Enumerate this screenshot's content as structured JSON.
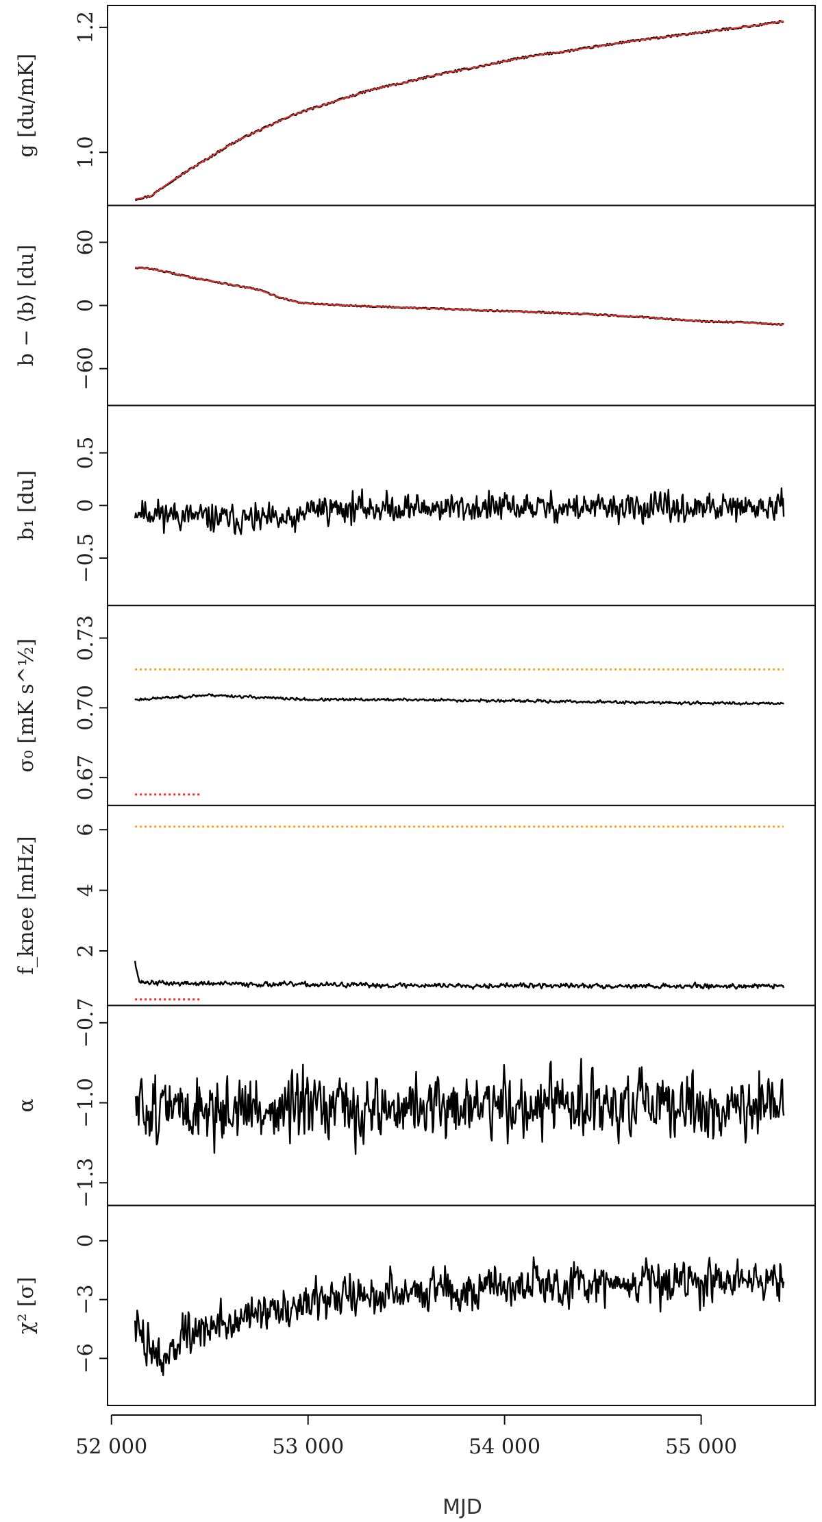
{
  "chart_data": {
    "type": "line",
    "x_axis": {
      "label": "MJD",
      "range": [
        51980,
        55580
      ],
      "ticks": [
        52000,
        53000,
        54000,
        55000
      ],
      "tick_labels": [
        "52 000",
        "53 000",
        "54 000",
        "55 000"
      ]
    },
    "panels": [
      {
        "ylabel": "g [du/mK]",
        "ylim": [
          0.915,
          1.235
        ],
        "yticks": [
          1.0,
          1.2
        ],
        "ytick_labels": [
          "1.0",
          "1.2"
        ],
        "series": [
          {
            "kind": "line",
            "color": "#000000",
            "x": [
              52120,
              52200,
              52300,
              52400,
              52500,
              52600,
              52700,
              52800,
              52900,
              53000,
              53100,
              53200,
              53300,
              53400,
              53500,
              53600,
              53700,
              53800,
              53900,
              54000,
              54100,
              54200,
              54300,
              54400,
              54500,
              54600,
              54700,
              54800,
              54900,
              55000,
              55100,
              55200,
              55300,
              55420
            ],
            "y": [
              0.925,
              0.93,
              0.953,
              0.973,
              0.992,
              1.012,
              1.028,
              1.042,
              1.057,
              1.068,
              1.078,
              1.088,
              1.098,
              1.106,
              1.112,
              1.12,
              1.127,
              1.133,
              1.139,
              1.146,
              1.152,
              1.157,
              1.161,
              1.166,
              1.171,
              1.176,
              1.18,
              1.184,
              1.188,
              1.192,
              1.196,
              1.2,
              1.204,
              1.21
            ],
            "noise": 0.0015
          },
          {
            "kind": "line",
            "color": "#e0302a",
            "x": [
              52120,
              52200,
              52300,
              52400,
              52500,
              52600,
              52700,
              52800,
              52900,
              53000,
              53100,
              53200,
              53300,
              53400,
              53500,
              53600,
              53700,
              53800,
              53900,
              54000,
              54100,
              54200,
              54300,
              54400,
              54500,
              54600,
              54700,
              54800,
              54900,
              55000,
              55100,
              55200,
              55300,
              55420
            ],
            "y": [
              0.925,
              0.93,
              0.953,
              0.973,
              0.992,
              1.012,
              1.028,
              1.042,
              1.057,
              1.068,
              1.078,
              1.088,
              1.098,
              1.106,
              1.112,
              1.12,
              1.127,
              1.133,
              1.139,
              1.146,
              1.152,
              1.157,
              1.161,
              1.166,
              1.171,
              1.176,
              1.18,
              1.184,
              1.188,
              1.192,
              1.196,
              1.2,
              1.204,
              1.21
            ],
            "noise": 0
          }
        ]
      },
      {
        "ylabel": "b − ⟨b⟩ [du]",
        "ylim": [
          -95,
          95
        ],
        "yticks": [
          -60,
          0,
          60
        ],
        "ytick_labels": [
          "−60",
          "0",
          "60"
        ],
        "series": [
          {
            "kind": "line",
            "color": "#000000",
            "x": [
              52120,
              52200,
              52400,
              52600,
              52750,
              52850,
              52950,
              53000,
              53200,
              53500,
              53800,
              54100,
              54400,
              54700,
              55000,
              55200,
              55420
            ],
            "y": [
              36,
              35,
              27,
              20,
              15,
              8,
              3,
              2,
              0,
              -2,
              -4,
              -6,
              -8,
              -11,
              -15,
              -16,
              -18
            ],
            "noise": 0.6
          },
          {
            "kind": "line",
            "color": "#e0302a",
            "x": [
              52120,
              52200,
              52400,
              52600,
              52750,
              52850,
              52950,
              53000,
              53200,
              53500,
              53800,
              54100,
              54400,
              54700,
              55000,
              55200,
              55420
            ],
            "y": [
              36,
              35,
              27,
              20,
              15,
              8,
              3,
              2,
              0,
              -2,
              -4,
              -6,
              -8,
              -11,
              -15,
              -16,
              -18
            ],
            "noise": 0
          }
        ]
      },
      {
        "ylabel": "b₁ [du]",
        "ylim": [
          -0.95,
          0.95
        ],
        "yticks": [
          -0.5,
          0,
          0.5
        ],
        "ytick_labels": [
          "−0.5",
          "0",
          "0.5"
        ],
        "series": [
          {
            "kind": "noise",
            "color": "#000000",
            "x": [
              52120,
              52500,
              52950,
              53000,
              53500,
              54000,
              55000,
              55420
            ],
            "y": [
              -0.05,
              -0.12,
              -0.15,
              -0.03,
              -0.02,
              -0.02,
              -0.03,
              -0.02
            ],
            "amplitude": 0.26,
            "points": 900,
            "seed": 11
          }
        ]
      },
      {
        "ylabel": "σ₀ [mK s^½]",
        "ylim": [
          0.658,
          0.744
        ],
        "yticks": [
          0.67,
          0.7,
          0.73
        ],
        "ytick_labels": [
          "0.67",
          "0.70",
          "0.73"
        ],
        "series": [
          {
            "kind": "noise",
            "color": "#000000",
            "x": [
              52120,
              52500,
              53000,
              53500,
              54000,
              54500,
              55000,
              55420
            ],
            "y": [
              0.7035,
              0.7055,
              0.7035,
              0.7035,
              0.703,
              0.7025,
              0.702,
              0.702
            ],
            "amplitude": 0.0012,
            "points": 900,
            "seed": 23
          },
          {
            "kind": "dotted",
            "color": "#f5a623",
            "x": [
              52120,
              55420
            ],
            "y": [
              0.7165,
              0.7165
            ]
          },
          {
            "kind": "dotted",
            "color": "#ee2a2a",
            "x": [
              52120,
              52450
            ],
            "y": [
              0.6627,
              0.6627
            ]
          }
        ]
      },
      {
        "ylabel": "f_knee [mHz]",
        "ylim": [
          0.2,
          6.8
        ],
        "yticks": [
          2,
          4,
          6
        ],
        "ytick_labels": [
          "2",
          "4",
          "6"
        ],
        "series": [
          {
            "kind": "noise",
            "color": "#000000",
            "x": [
              52120,
              52140,
              52150,
              52300,
              52800,
              53300,
              53800,
              54300,
              54800,
              55420
            ],
            "y": [
              1.7,
              1.0,
              0.97,
              0.93,
              0.9,
              0.87,
              0.86,
              0.85,
              0.84,
              0.84
            ],
            "amplitude": 0.16,
            "points": 900,
            "seed": 37
          },
          {
            "kind": "dotted",
            "color": "#f5a623",
            "x": [
              52120,
              55420
            ],
            "y": [
              6.1,
              6.1
            ]
          },
          {
            "kind": "dotted",
            "color": "#ee2a2a",
            "x": [
              52120,
              52450
            ],
            "y": [
              0.4,
              0.4
            ]
          }
        ]
      },
      {
        "ylabel": "α",
        "ylim": [
          -1.385,
          -0.635
        ],
        "yticks": [
          -1.3,
          -1.0,
          -0.7
        ],
        "ytick_labels": [
          "−1.3",
          "−1.0",
          "−0.7"
        ],
        "series": [
          {
            "kind": "noise",
            "color": "#000000",
            "x": [
              52120,
              53000,
              54000,
              55000,
              55420
            ],
            "y": [
              -1.02,
              -1.03,
              -1.01,
              -1.02,
              -1.02
            ],
            "amplitude": 0.24,
            "points": 900,
            "seed": 51
          }
        ]
      },
      {
        "ylabel": "χ² [σ]",
        "ylim": [
          -8.4,
          1.8
        ],
        "yticks": [
          -6,
          -3,
          0
        ],
        "ytick_labels": [
          "−6",
          "−3",
          "0"
        ],
        "series": [
          {
            "kind": "noise",
            "color": "#000000",
            "x": [
              52120,
              52250,
              52400,
              52600,
              52800,
              53000,
              53300,
              53600,
              54000,
              54400,
              54800,
              55100,
              55420
            ],
            "y": [
              -4.5,
              -6.0,
              -4.8,
              -4.2,
              -3.6,
              -3.0,
              -2.8,
              -2.5,
              -2.3,
              -2.2,
              -2.0,
              -2.0,
              -2.0
            ],
            "amplitude": 2.1,
            "points": 900,
            "seed": 73
          }
        ]
      }
    ]
  }
}
